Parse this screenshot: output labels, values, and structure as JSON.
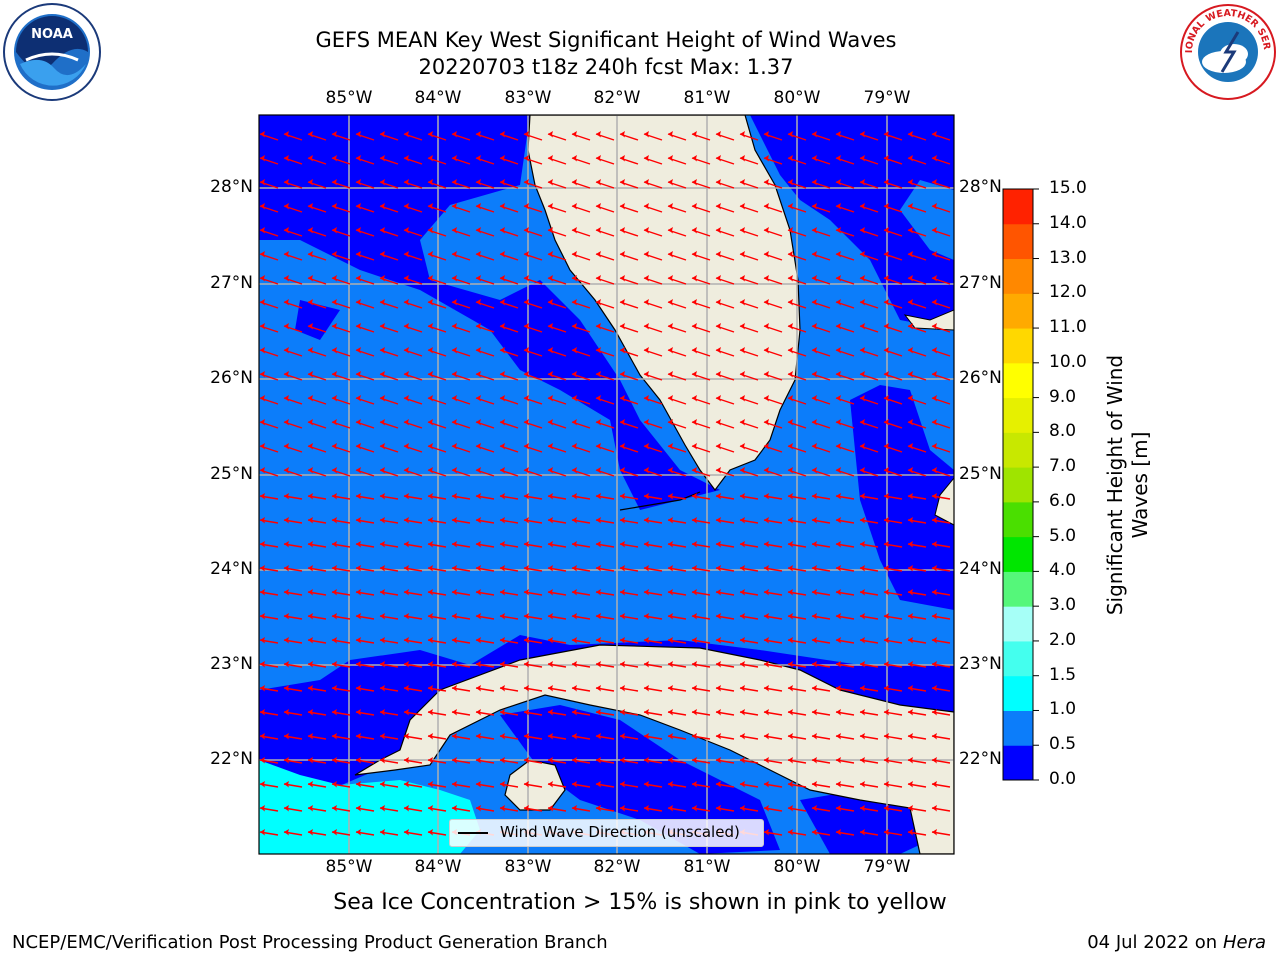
{
  "title": {
    "line1": "GEFS MEAN Key West Significant Height of Wind Waves",
    "line2": "20220703 t18z 240h fcst   Max: 1.37"
  },
  "map": {
    "extent": {
      "lon": [
        -86.0,
        -78.3
      ],
      "lat": [
        21.0,
        28.75
      ]
    },
    "lon_ticks": [
      "85°W",
      "84°W",
      "83°W",
      "82°W",
      "81°W",
      "80°W",
      "79°W"
    ],
    "lat_ticks": [
      "28°N",
      "27°N",
      "26°N",
      "25°N",
      "24°N",
      "23°N",
      "22°N"
    ],
    "legend_label": "Wind Wave Direction (unscaled)",
    "arrow_color": "#ff0000",
    "land_color": "#efedde"
  },
  "colorbar": {
    "label": "Significant Height of Wind Waves [m]",
    "tick_labels": [
      "0.0",
      "0.5",
      "1.0",
      "1.5",
      "2.0",
      "3.0",
      "4.0",
      "5.0",
      "6.0",
      "7.0",
      "8.0",
      "9.0",
      "10.0",
      "11.0",
      "12.0",
      "13.0",
      "14.0",
      "15.0"
    ],
    "colors": [
      "#0000ff",
      "#0c7dfa",
      "#00ffff",
      "#44ffee",
      "#a6fff7",
      "#55f77a",
      "#00e600",
      "#4adf00",
      "#9fe400",
      "#c8e800",
      "#e6f000",
      "#ffff00",
      "#ffd800",
      "#ffaa00",
      "#ff8800",
      "#ff5500",
      "#ff2200"
    ]
  },
  "note": "Sea Ice Concentration > 15% is shown in pink to yellow",
  "footer": {
    "left": "NCEP/EMC/Verification Post Processing Product Generation Branch",
    "right_prefix": "04 Jul 2022 on ",
    "right_host": "Hera"
  },
  "logos": {
    "left": "NOAA",
    "right": "NATIONAL WEATHER SERVICE"
  }
}
